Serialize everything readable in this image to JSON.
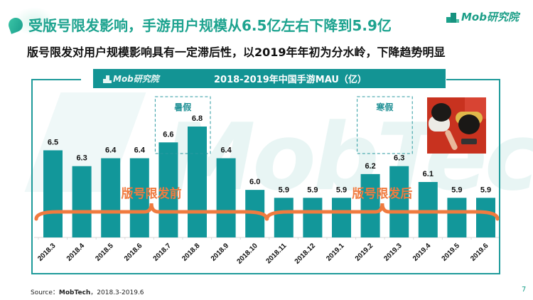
{
  "header": {
    "title": "受版号限发影响，手游用户规模从6.5亿左右下降到5.9亿",
    "subtitle": "版号限发对用户规模影响具有一定滞后性，以2019年年初为分水岭，下降趋势明显",
    "logo_text": "Mob研究院"
  },
  "chart_header": {
    "logo_text": "Mob研究院",
    "title": "2018-2019年中国手游MAU（亿）"
  },
  "watermark": "MobTech",
  "chart_data": {
    "type": "bar",
    "title": "2018-2019年中国手游MAU（亿）",
    "xlabel": "",
    "ylabel": "MAU（亿）",
    "categories": [
      "2018.3",
      "2018.4",
      "2018.5",
      "2018.6",
      "2018.7",
      "2018.8",
      "2018.9",
      "2018.10",
      "2018.11",
      "2018.12",
      "2019.1",
      "2019.2",
      "2019.3",
      "2019.4",
      "2019.5",
      "2019.6"
    ],
    "values": [
      6.5,
      6.3,
      6.4,
      6.4,
      6.6,
      6.8,
      6.4,
      6.0,
      5.9,
      5.9,
      5.9,
      6.2,
      6.3,
      6.1,
      5.9,
      5.9
    ],
    "value_labels": [
      "6.5",
      "6.3",
      "6.4",
      "6.4",
      "6.6",
      "6.8",
      "6.4",
      "6.0",
      "5.9",
      "5.9",
      "5.9",
      "6.2",
      "6.3",
      "6.1",
      "5.9",
      "5.9"
    ],
    "ylim": [
      5.4,
      7.0
    ],
    "grid": false,
    "bar_color": "#12979A",
    "annotations": [
      {
        "type": "dashed-box",
        "label": "暑假",
        "categories": [
          "2018.7",
          "2018.8"
        ]
      },
      {
        "type": "dashed-box",
        "label": "寒假",
        "categories": [
          "2019.2",
          "2019.3"
        ]
      },
      {
        "type": "brace",
        "label": "版号限发前",
        "from": "2018.3",
        "to": "2018.10"
      },
      {
        "type": "brace",
        "label": "版号限发后",
        "from": "2018.11",
        "to": "2019.6"
      }
    ],
    "annotation_color": "#F07B3F",
    "box_color": "#2a9aa0"
  },
  "photo": {
    "alt": "two children playing mobile games"
  },
  "footer": {
    "source_prefix": "Source：",
    "source_brand": "MobTech",
    "source_suffix": "，2018.3-2019.6",
    "page_number": "7"
  }
}
